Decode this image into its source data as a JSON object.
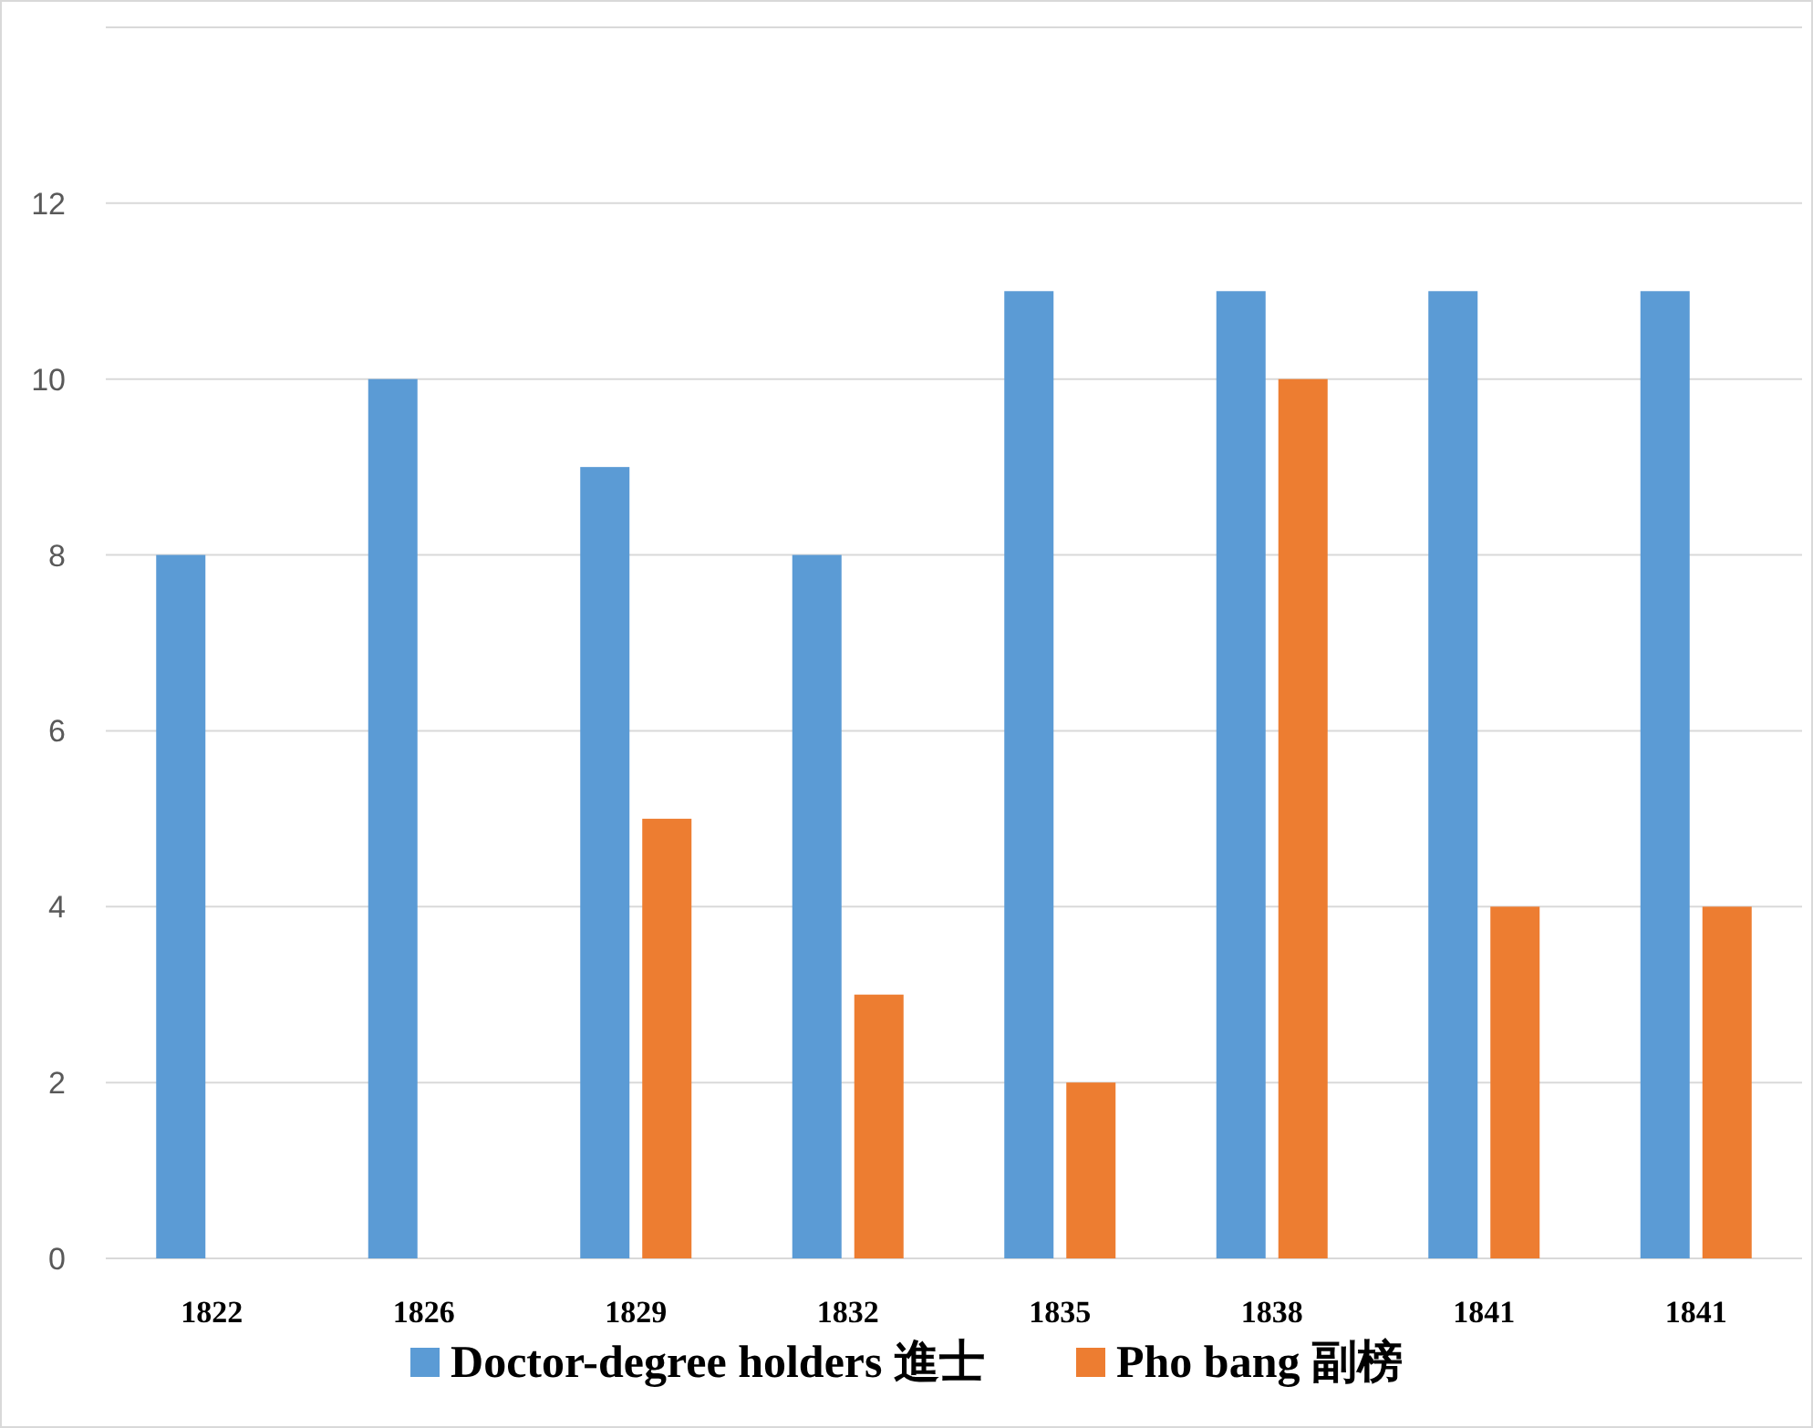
{
  "chart_data": {
    "type": "bar",
    "categories": [
      "1822",
      "1826",
      "1829",
      "1832",
      "1835",
      "1838",
      "1841",
      "1841"
    ],
    "series": [
      {
        "name": "Doctor-degree holders 進士",
        "color": "#5b9bd5",
        "values": [
          8,
          10,
          9,
          8,
          11,
          11,
          11,
          11
        ]
      },
      {
        "name": "Pho bang 副榜",
        "color": "#ed7d31",
        "values": [
          null,
          null,
          5,
          3,
          2,
          10,
          4,
          4
        ]
      }
    ],
    "ylim": [
      0,
      14
    ],
    "yticks": [
      0,
      2,
      4,
      6,
      8,
      10,
      12,
      {
        "value": 14,
        "label": null
      }
    ],
    "grid": "y",
    "legend": "bottom"
  }
}
